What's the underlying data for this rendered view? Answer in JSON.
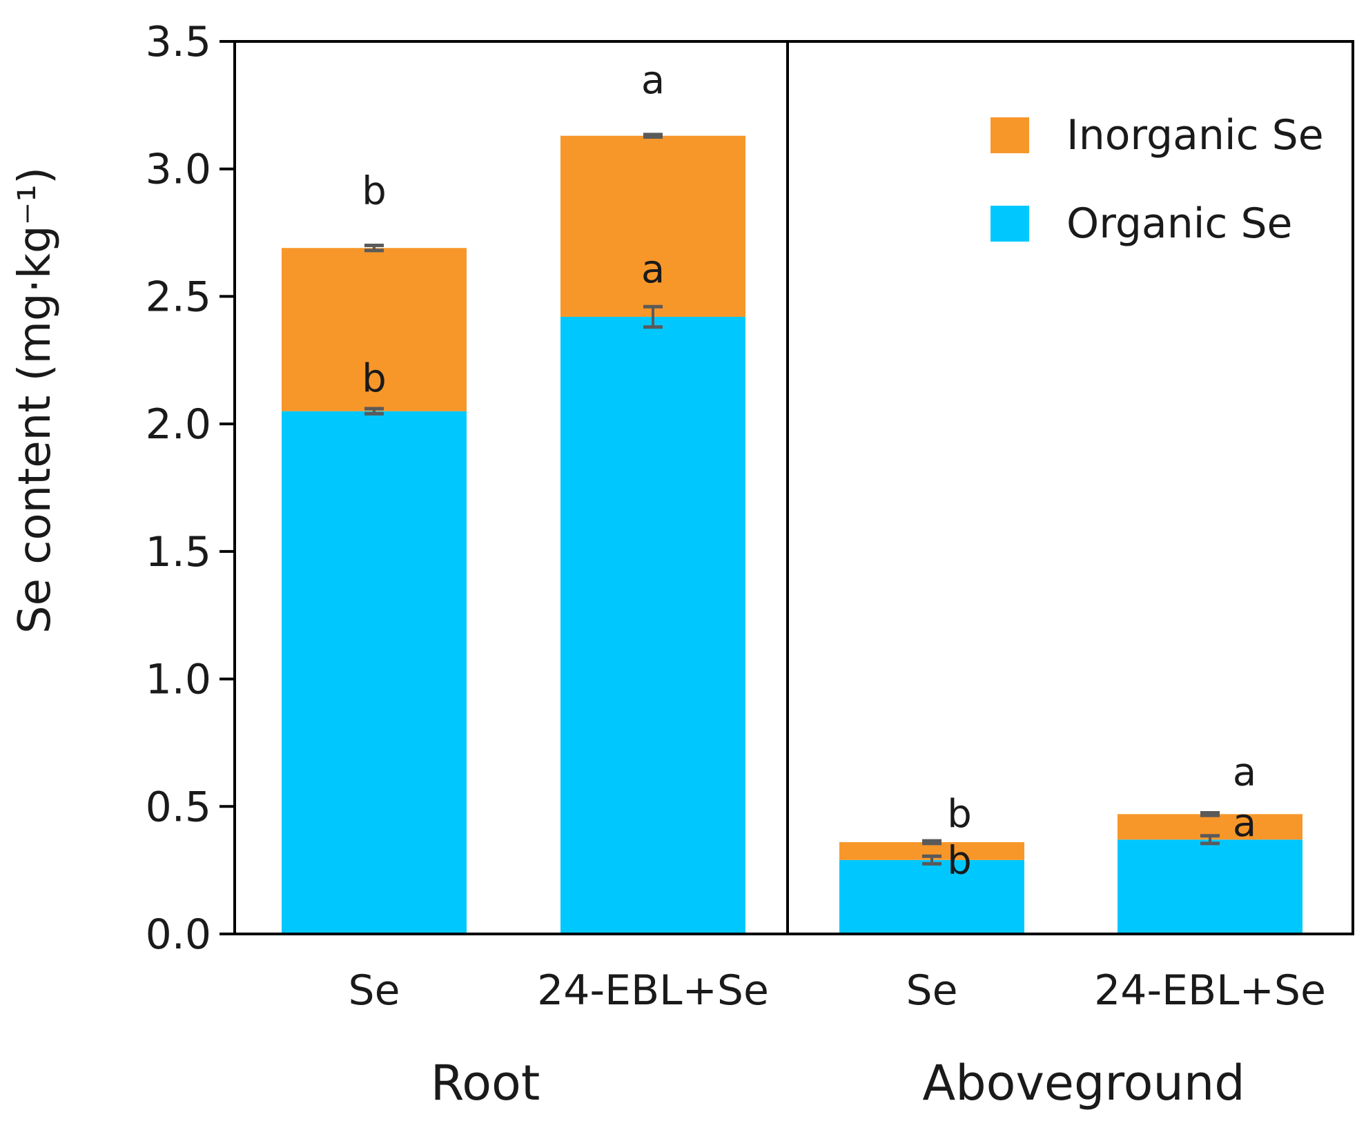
{
  "chart_data": {
    "type": "bar",
    "stacked": true,
    "ylabel": "Se content (mg·kg⁻¹)",
    "ylim": [
      0,
      3.5
    ],
    "yticks": [
      "0.0",
      "0.5",
      "1.0",
      "1.5",
      "2.0",
      "2.5",
      "3.0",
      "3.5"
    ],
    "groups": [
      {
        "name": "Root",
        "categories": [
          "Se",
          "24-EBL+Se"
        ]
      },
      {
        "name": "Aboveground",
        "categories": [
          "Se",
          "24-EBL+Se"
        ]
      }
    ],
    "series": [
      {
        "name": "Organic Se",
        "color": "#00c8ff",
        "values": [
          2.05,
          2.42,
          0.29,
          0.37
        ],
        "error": [
          0.01,
          0.04,
          0.015,
          0.015
        ],
        "significance": [
          "b",
          "a",
          "b",
          "a"
        ]
      },
      {
        "name": "Inorganic Se",
        "color": "#f7972a",
        "values": [
          0.64,
          0.71,
          0.07,
          0.1
        ],
        "error": [
          0.01,
          0.005,
          0.005,
          0.005
        ],
        "significance": [
          "b",
          "a",
          "b",
          "a"
        ]
      }
    ],
    "legend": {
      "position": "top-right",
      "entries": [
        "Inorganic Se",
        "Organic Se"
      ]
    },
    "grid": false,
    "error_bar_color": "#5a5a5a"
  }
}
